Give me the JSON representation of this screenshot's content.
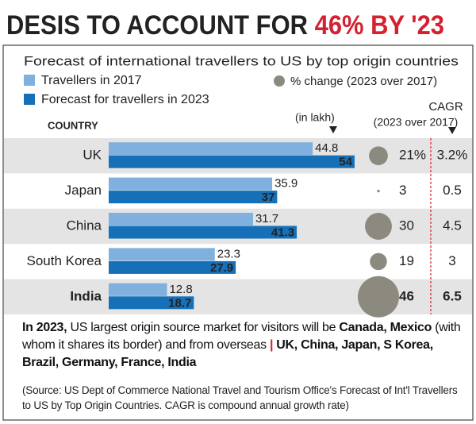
{
  "chart_data": {
    "type": "bar",
    "title": "DESIS TO ACCOUNT FOR",
    "title_highlight": "46% BY '23",
    "subtitle": "Forecast of international travellers to US by top origin countries",
    "category_header": "COUNTRY",
    "unit_label": "(in lakh)",
    "categories": [
      "UK",
      "Japan",
      "China",
      "South Korea",
      "India"
    ],
    "series": [
      {
        "name": "Travellers in 2017",
        "color": "#7fb0de",
        "values": [
          44.8,
          35.9,
          31.7,
          23.3,
          12.8
        ]
      },
      {
        "name": "Forecast for travellers in 2023",
        "color": "#1670b8",
        "values": [
          54,
          37,
          41.3,
          27.9,
          18.7
        ]
      }
    ],
    "pct_change": {
      "name": "% change (2023 over 2017)",
      "color": "#8c8a7f",
      "values": [
        21,
        3,
        30,
        19,
        46
      ],
      "value_labels": [
        "21%",
        "3",
        "30",
        "19",
        "46"
      ]
    },
    "cagr": {
      "name": "CAGR",
      "subtitle": "(2023 over 2017)",
      "color": "#d62030",
      "values": [
        3.2,
        0.5,
        4.5,
        3,
        6.5
      ],
      "value_labels": [
        "3.2%",
        "0.5",
        "4.5",
        "3",
        "6.5"
      ]
    },
    "note": [
      "In 2023,",
      " US largest origin source market for visitors will be ",
      "Canada, Mexico",
      " (with whom it shares its border) and from overseas ",
      "|",
      " UK, China, Japan, S Korea, Brazil, Germany, France, India"
    ],
    "source": "(Source: US Dept of Commerce National Travel and Tourism Office's Forecast of Int'l Travellers to US by Top Origin Countries. CAGR is compound annual growth rate)"
  }
}
